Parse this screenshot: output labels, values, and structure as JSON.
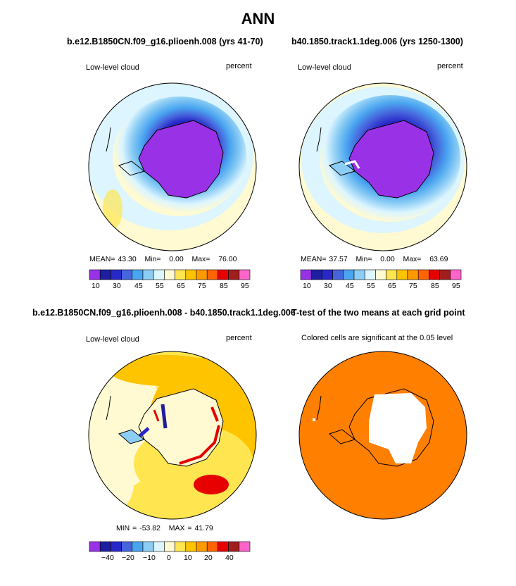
{
  "main_title": "ANN",
  "colors": {
    "ocean_orange": "#ff7f00",
    "ramp": [
      "#9932e6",
      "#1e1ea0",
      "#2828c8",
      "#4664dc",
      "#4aa5f0",
      "#8ccdf5",
      "#dcf5ff",
      "#fffad2",
      "#ffe650",
      "#ffc400",
      "#ff9900",
      "#ff6400",
      "#e60000",
      "#a01e1e",
      "#ff64c8"
    ]
  },
  "panels": [
    {
      "title": "b.e12.B1850CN.f09_g16.plioenh.008 (yrs 41-70)",
      "variable": "Low-level cloud",
      "units": "percent",
      "stats": {
        "mean_label": "MEAN=",
        "mean": "43.30",
        "min_label": "Min=",
        "min": "0.00",
        "max_label": "Max=",
        "max": "76.00"
      },
      "colorbar_labels": [
        "10",
        "30",
        "45",
        "55",
        "65",
        "75",
        "85",
        "95"
      ]
    },
    {
      "title": "b40.1850.track1.1deg.006 (yrs 1250-1300)",
      "variable": "Low-level cloud",
      "units": "percent",
      "stats": {
        "mean_label": "MEAN=",
        "mean": "37.57",
        "min_label": "Min=",
        "min": "0.00",
        "max_label": "Max=",
        "max": "63.69"
      },
      "colorbar_labels": [
        "10",
        "30",
        "45",
        "55",
        "65",
        "75",
        "85",
        "95"
      ]
    },
    {
      "title": "b.e12.B1850CN.f09_g16.plioenh.008 - b40.1850.track1.1deg.006",
      "variable": "Low-level cloud",
      "units": "percent",
      "stats": {
        "min_label": "MIN =",
        "min": "-53.82",
        "max_label": "MAX =",
        "max": "41.79"
      },
      "colorbar_labels": [
        "−40",
        "−20",
        "−10",
        "0",
        "10",
        "20",
        "40"
      ]
    },
    {
      "title": "T-test of the two means at each grid point",
      "subtitle": "Colored cells are significant at the 0.05 level"
    }
  ]
}
